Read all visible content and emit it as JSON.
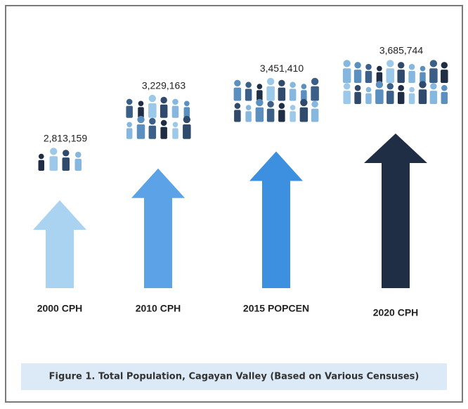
{
  "chart_data": {
    "type": "arrow",
    "title": "Figure 1. Total Population, Cagayan Valley (Based on Various Censuses)",
    "categories": [
      "2000 CPH",
      "2010 CPH",
      "2015 POPCEN",
      "2020 CPH"
    ],
    "values": [
      2813159,
      3229163,
      3451410,
      3685744
    ],
    "value_labels": [
      "2,813,159",
      "3,229,163",
      "3,451,410",
      "3,685,744"
    ],
    "colors": [
      "#a9d3f0",
      "#5ba3e6",
      "#3d8fe0",
      "#1f2d45"
    ]
  }
}
